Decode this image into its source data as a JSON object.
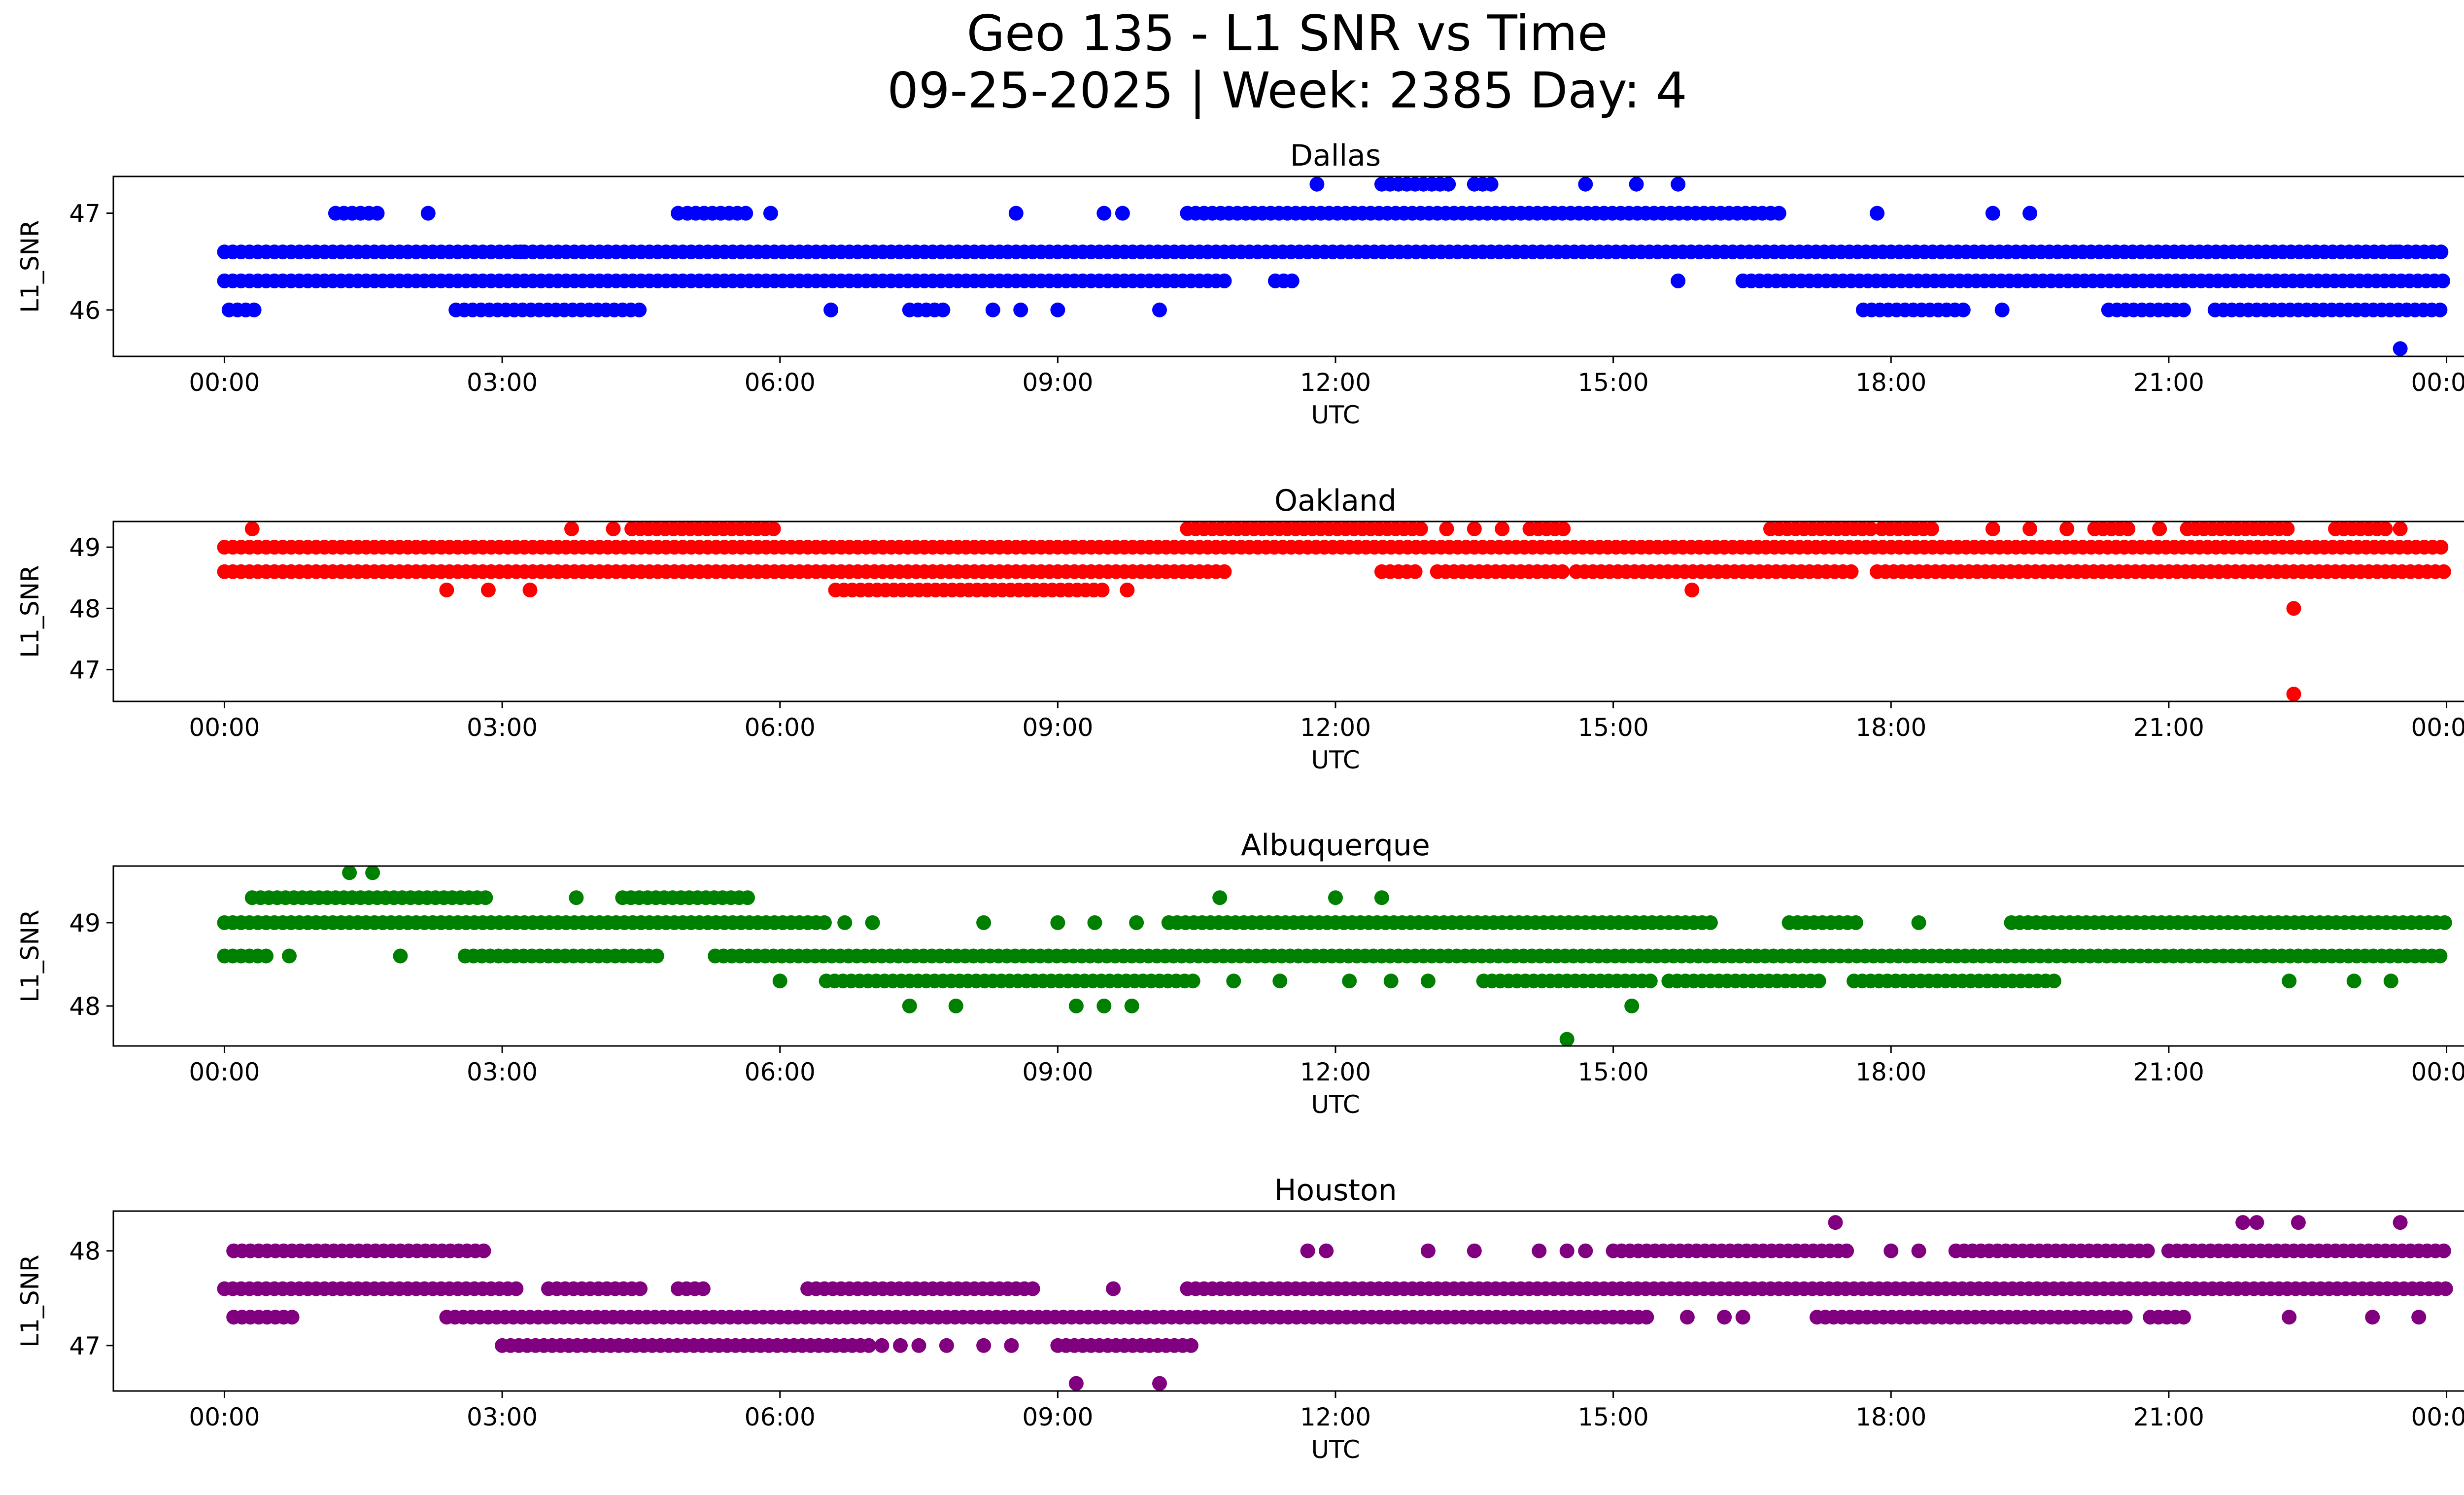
{
  "figure": {
    "title_line1": "Geo 135 - L1 SNR vs Time",
    "title_line2": "09-25-2025 | Week: 2385 Day: 4"
  },
  "chart_data": [
    {
      "type": "scatter",
      "title": "Dallas",
      "xlabel": "UTC",
      "ylabel": "L1_SNR",
      "color": "#0000ff",
      "x_ticks": [
        "00:00",
        "03:00",
        "06:00",
        "09:00",
        "12:00",
        "15:00",
        "18:00",
        "21:00",
        "00:00"
      ],
      "xlim_hours": [
        -1.2,
        25.2
      ],
      "ylim": [
        45.52,
        47.38
      ],
      "y_ticks": [
        46,
        47
      ],
      "bands": [
        {
          "y": 46.6,
          "ranges": [
            [
              0.0,
              24.0
            ]
          ]
        },
        {
          "y": 46.3,
          "ranges": [
            [
              0.0,
              10.8
            ],
            [
              11.35,
              11.55
            ],
            [
              16.4,
              24.0
            ]
          ]
        },
        {
          "y": 46.0,
          "ranges": [
            [
              0.05,
              0.35
            ],
            [
              2.5,
              4.5
            ],
            [
              7.4,
              7.8
            ],
            [
              17.7,
              18.8
            ],
            [
              20.35,
              21.2
            ],
            [
              21.5,
              24.0
            ]
          ]
        },
        {
          "y": 47.0,
          "ranges": [
            [
              1.2,
              1.7
            ],
            [
              5.0,
              5.7
            ],
            [
              10.4,
              16.85
            ]
          ]
        },
        {
          "y": 47.3,
          "ranges": [
            [
              12.5,
              13.3
            ],
            [
              13.5,
              13.7
            ]
          ]
        }
      ],
      "points": [
        [
          2.2,
          47.0
        ],
        [
          4.9,
          47.0
        ],
        [
          5.9,
          47.0
        ],
        [
          8.55,
          47.0
        ],
        [
          9.5,
          47.0
        ],
        [
          9.7,
          47.0
        ],
        [
          17.85,
          47.0
        ],
        [
          19.1,
          47.0
        ],
        [
          19.5,
          47.0
        ],
        [
          11.8,
          47.3
        ],
        [
          14.7,
          47.3
        ],
        [
          15.25,
          47.3
        ],
        [
          15.7,
          47.3
        ],
        [
          6.55,
          46.0
        ],
        [
          8.3,
          46.0
        ],
        [
          8.6,
          46.0
        ],
        [
          9.0,
          46.0
        ],
        [
          10.1,
          46.0
        ],
        [
          19.2,
          46.0
        ],
        [
          15.7,
          46.3
        ],
        [
          3.2,
          46.6
        ],
        [
          22.5,
          46.6
        ],
        [
          23.45,
          46.6
        ],
        [
          23.5,
          45.6
        ]
      ]
    },
    {
      "type": "scatter",
      "title": "Oakland",
      "xlabel": "UTC",
      "ylabel": "L1_SNR",
      "color": "#ff0000",
      "x_ticks": [
        "00:00",
        "03:00",
        "06:00",
        "09:00",
        "12:00",
        "15:00",
        "18:00",
        "21:00",
        "00:00"
      ],
      "xlim_hours": [
        -1.2,
        25.2
      ],
      "ylim": [
        46.48,
        49.42
      ],
      "y_ticks": [
        47,
        48,
        49
      ],
      "bands": [
        {
          "y": 49.0,
          "ranges": [
            [
              0.0,
              24.0
            ]
          ]
        },
        {
          "y": 48.6,
          "ranges": [
            [
              0.0,
              10.8
            ],
            [
              12.5,
              12.9
            ],
            [
              13.1,
              14.5
            ],
            [
              14.6,
              17.6
            ],
            [
              17.85,
              24.0
            ]
          ]
        },
        {
          "y": 48.3,
          "ranges": [
            [
              6.6,
              9.5
            ]
          ]
        },
        {
          "y": 49.3,
          "ranges": [
            [
              4.4,
              6.0
            ],
            [
              10.4,
              13.0
            ],
            [
              14.1,
              14.5
            ],
            [
              16.7,
              17.8
            ],
            [
              17.9,
              18.5
            ],
            [
              20.2,
              20.6
            ],
            [
              21.2,
              22.3
            ],
            [
              22.8,
              23.4
            ]
          ]
        }
      ],
      "points": [
        [
          0.3,
          49.3
        ],
        [
          3.75,
          49.3
        ],
        [
          4.2,
          49.3
        ],
        [
          13.2,
          49.3
        ],
        [
          13.5,
          49.3
        ],
        [
          13.8,
          49.3
        ],
        [
          19.1,
          49.3
        ],
        [
          19.5,
          49.3
        ],
        [
          19.9,
          49.3
        ],
        [
          20.9,
          49.3
        ],
        [
          23.5,
          49.3
        ],
        [
          2.4,
          48.3
        ],
        [
          2.85,
          48.3
        ],
        [
          3.3,
          48.3
        ],
        [
          9.75,
          48.3
        ],
        [
          15.85,
          48.3
        ],
        [
          22.35,
          48.0
        ],
        [
          22.35,
          46.6
        ]
      ]
    },
    {
      "type": "scatter",
      "title": "Albuquerque",
      "xlabel": "UTC",
      "ylabel": "L1_SNR",
      "color": "#008000",
      "x_ticks": [
        "00:00",
        "03:00",
        "06:00",
        "09:00",
        "12:00",
        "15:00",
        "18:00",
        "21:00",
        "00:00"
      ],
      "xlim_hours": [
        -1.2,
        25.2
      ],
      "ylim": [
        47.52,
        49.68
      ],
      "y_ticks": [
        48,
        49
      ],
      "bands": [
        {
          "y": 49.0,
          "ranges": [
            [
              0.0,
              6.5
            ],
            [
              10.2,
              16.1
            ],
            [
              16.9,
              17.7
            ],
            [
              19.3,
              24.0
            ]
          ]
        },
        {
          "y": 48.6,
          "ranges": [
            [
              0.0,
              0.5
            ],
            [
              2.6,
              4.7
            ],
            [
              5.3,
              24.0
            ]
          ]
        },
        {
          "y": 48.3,
          "ranges": [
            [
              6.5,
              10.5
            ],
            [
              13.6,
              15.4
            ],
            [
              15.6,
              17.3
            ],
            [
              17.6,
              19.8
            ]
          ]
        },
        {
          "y": 49.3,
          "ranges": [
            [
              0.3,
              2.9
            ],
            [
              4.3,
              5.7
            ]
          ]
        }
      ],
      "points": [
        [
          1.35,
          49.6
        ],
        [
          1.6,
          49.6
        ],
        [
          3.8,
          49.3
        ],
        [
          10.75,
          49.3
        ],
        [
          12.0,
          49.3
        ],
        [
          12.5,
          49.3
        ],
        [
          6.7,
          49.0
        ],
        [
          7.0,
          49.0
        ],
        [
          8.2,
          49.0
        ],
        [
          9.0,
          49.0
        ],
        [
          9.4,
          49.0
        ],
        [
          9.85,
          49.0
        ],
        [
          18.3,
          49.0
        ],
        [
          0.7,
          48.6
        ],
        [
          1.9,
          48.6
        ],
        [
          6.0,
          48.3
        ],
        [
          10.9,
          48.3
        ],
        [
          11.4,
          48.3
        ],
        [
          12.15,
          48.3
        ],
        [
          12.6,
          48.3
        ],
        [
          13.0,
          48.3
        ],
        [
          22.3,
          48.3
        ],
        [
          23.0,
          48.3
        ],
        [
          23.4,
          48.3
        ],
        [
          7.4,
          48.0
        ],
        [
          7.9,
          48.0
        ],
        [
          9.2,
          48.0
        ],
        [
          9.5,
          48.0
        ],
        [
          9.8,
          48.0
        ],
        [
          15.2,
          48.0
        ],
        [
          14.5,
          47.6
        ]
      ]
    },
    {
      "type": "scatter",
      "title": "Houston",
      "xlabel": "UTC",
      "ylabel": "L1_SNR",
      "color": "#800080",
      "x_ticks": [
        "00:00",
        "03:00",
        "06:00",
        "09:00",
        "12:00",
        "15:00",
        "18:00",
        "21:00",
        "00:00"
      ],
      "xlim_hours": [
        -1.2,
        25.2
      ],
      "ylim": [
        46.52,
        48.42
      ],
      "y_ticks": [
        47,
        48
      ],
      "bands": [
        {
          "y": 47.6,
          "ranges": [
            [
              0.0,
              3.2
            ],
            [
              3.5,
              4.5
            ],
            [
              4.9,
              5.2
            ],
            [
              6.3,
              8.8
            ],
            [
              10.4,
              24.0
            ]
          ]
        },
        {
          "y": 47.3,
          "ranges": [
            [
              0.1,
              0.8
            ],
            [
              2.4,
              15.4
            ],
            [
              17.2,
              20.6
            ],
            [
              20.8,
              21.2
            ]
          ]
        },
        {
          "y": 47.0,
          "ranges": [
            [
              3.0,
              7.0
            ],
            [
              9.0,
              10.5
            ]
          ]
        },
        {
          "y": 48.0,
          "ranges": [
            [
              0.1,
              2.8
            ],
            [
              15.0,
              17.6
            ],
            [
              18.7,
              20.8
            ],
            [
              21.0,
              24.0
            ]
          ]
        }
      ],
      "points": [
        [
          17.4,
          48.3
        ],
        [
          21.8,
          48.3
        ],
        [
          21.95,
          48.3
        ],
        [
          22.4,
          48.3
        ],
        [
          23.5,
          48.3
        ],
        [
          11.7,
          48.0
        ],
        [
          11.9,
          48.0
        ],
        [
          13.0,
          48.0
        ],
        [
          13.5,
          48.0
        ],
        [
          14.2,
          48.0
        ],
        [
          14.5,
          48.0
        ],
        [
          14.7,
          48.0
        ],
        [
          18.0,
          48.0
        ],
        [
          18.3,
          48.0
        ],
        [
          9.6,
          47.6
        ],
        [
          15.8,
          47.3
        ],
        [
          16.2,
          47.3
        ],
        [
          16.4,
          47.3
        ],
        [
          22.3,
          47.3
        ],
        [
          23.2,
          47.3
        ],
        [
          23.7,
          47.3
        ],
        [
          7.1,
          47.0
        ],
        [
          7.3,
          47.0
        ],
        [
          7.5,
          47.0
        ],
        [
          7.8,
          47.0
        ],
        [
          8.2,
          47.0
        ],
        [
          8.5,
          47.0
        ],
        [
          9.2,
          46.6
        ],
        [
          10.1,
          46.6
        ]
      ]
    }
  ]
}
